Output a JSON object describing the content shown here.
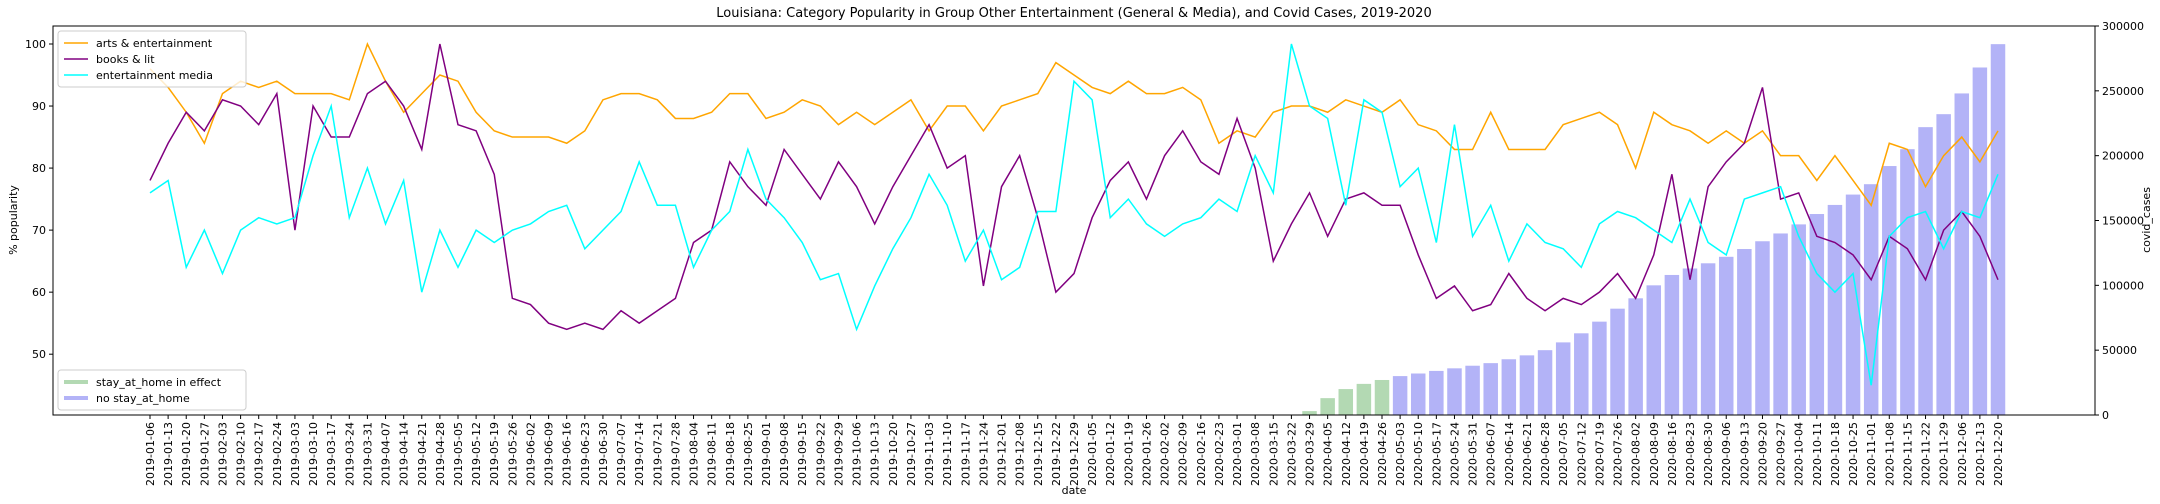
{
  "chart_data": {
    "type": "line",
    "title": "Louisiana: Category Popularity in Group Other Entertainment (General & Media), and Covid Cases, 2019-2020",
    "x_label": "date",
    "y_label": "% popularity",
    "y2_label": "covid_cases",
    "legend": "upper left",
    "bar_legend": "lower left",
    "categories": [
      "2019-01-06",
      "2019-01-13",
      "2019-01-20",
      "2019-01-27",
      "2019-02-03",
      "2019-02-10",
      "2019-02-17",
      "2019-02-24",
      "2019-03-03",
      "2019-03-10",
      "2019-03-17",
      "2019-03-24",
      "2019-03-31",
      "2019-04-07",
      "2019-04-14",
      "2019-04-21",
      "2019-04-28",
      "2019-05-05",
      "2019-05-12",
      "2019-05-19",
      "2019-05-26",
      "2019-06-02",
      "2019-06-09",
      "2019-06-16",
      "2019-06-23",
      "2019-06-30",
      "2019-07-07",
      "2019-07-14",
      "2019-07-21",
      "2019-07-28",
      "2019-08-04",
      "2019-08-11",
      "2019-08-18",
      "2019-08-25",
      "2019-09-01",
      "2019-09-08",
      "2019-09-15",
      "2019-09-22",
      "2019-09-29",
      "2019-10-06",
      "2019-10-13",
      "2019-10-20",
      "2019-10-27",
      "2019-11-03",
      "2019-11-10",
      "2019-11-17",
      "2019-11-24",
      "2019-12-01",
      "2019-12-08",
      "2019-12-15",
      "2019-12-22",
      "2019-12-29",
      "2020-01-05",
      "2020-01-12",
      "2020-01-19",
      "2020-01-26",
      "2020-02-02",
      "2020-02-09",
      "2020-02-16",
      "2020-02-23",
      "2020-03-01",
      "2020-03-08",
      "2020-03-15",
      "2020-03-22",
      "2020-03-29",
      "2020-04-05",
      "2020-04-12",
      "2020-04-19",
      "2020-04-26",
      "2020-05-03",
      "2020-05-10",
      "2020-05-17",
      "2020-05-24",
      "2020-05-31",
      "2020-06-07",
      "2020-06-14",
      "2020-06-21",
      "2020-06-28",
      "2020-07-05",
      "2020-07-12",
      "2020-07-19",
      "2020-07-26",
      "2020-08-02",
      "2020-08-09",
      "2020-08-16",
      "2020-08-23",
      "2020-08-30",
      "2020-09-06",
      "2020-09-13",
      "2020-09-20",
      "2020-09-27",
      "2020-10-04",
      "2020-10-11",
      "2020-10-18",
      "2020-10-25",
      "2020-11-01",
      "2020-11-08",
      "2020-11-15",
      "2020-11-22",
      "2020-11-29",
      "2020-12-06",
      "2020-12-13",
      "2020-12-20"
    ],
    "ylim": [
      40.2,
      102.9
    ],
    "yticks": [
      50,
      60,
      70,
      80,
      90,
      100
    ],
    "y2lim": [
      0,
      300000
    ],
    "y2ticks": [
      0,
      50000,
      100000,
      150000,
      200000,
      250000,
      300000
    ],
    "series": [
      {
        "name": "arts & entertainment",
        "color": "#ffa500",
        "values": [
          96,
          93,
          89,
          84,
          92,
          94,
          93,
          94,
          92,
          92,
          92,
          91,
          100,
          94,
          89,
          92,
          95,
          94,
          89,
          86,
          85,
          85,
          85,
          84,
          86,
          91,
          92,
          92,
          91,
          88,
          88,
          89,
          92,
          92,
          88,
          89,
          91,
          90,
          87,
          89,
          87,
          89,
          91,
          86,
          90,
          90,
          86,
          90,
          91,
          92,
          97,
          95,
          93,
          92,
          94,
          92,
          92,
          93,
          91,
          84,
          86,
          85,
          89,
          90,
          90,
          89,
          91,
          90,
          89,
          91,
          87,
          86,
          83,
          83,
          89,
          83,
          83,
          83,
          87,
          88,
          89,
          87,
          80,
          89,
          87,
          86,
          84,
          86,
          84,
          86,
          82,
          82,
          78,
          82,
          78,
          74,
          84,
          83,
          77,
          82,
          85,
          81,
          86
        ]
      },
      {
        "name": "books & lit",
        "color": "#800080",
        "values": [
          78,
          84,
          89,
          86,
          91,
          90,
          87,
          92,
          70,
          90,
          85,
          85,
          92,
          94,
          90,
          83,
          100,
          87,
          86,
          79,
          59,
          58,
          55,
          54,
          55,
          54,
          57,
          55,
          57,
          59,
          68,
          70,
          81,
          77,
          74,
          83,
          79,
          75,
          81,
          77,
          71,
          77,
          82,
          87,
          80,
          82,
          61,
          77,
          82,
          72,
          60,
          63,
          72,
          78,
          81,
          75,
          82,
          86,
          81,
          79,
          88,
          80,
          65,
          71,
          76,
          69,
          75,
          76,
          74,
          74,
          66,
          59,
          61,
          57,
          58,
          63,
          59,
          57,
          59,
          58,
          60,
          63,
          59,
          66,
          79,
          62,
          77,
          81,
          84,
          93,
          75,
          76,
          69,
          68,
          66,
          62,
          69,
          67,
          62,
          70,
          73,
          69,
          62
        ]
      },
      {
        "name": "entertainment media",
        "color": "#00ffff",
        "values": [
          76,
          78,
          64,
          70,
          63,
          70,
          72,
          71,
          72,
          82,
          90,
          72,
          80,
          71,
          78,
          60,
          70,
          64,
          70,
          68,
          70,
          71,
          73,
          74,
          67,
          70,
          73,
          81,
          74,
          74,
          64,
          70,
          73,
          83,
          75,
          72,
          68,
          62,
          63,
          54,
          61,
          67,
          72,
          79,
          74,
          65,
          70,
          62,
          64,
          73,
          73,
          94,
          91,
          72,
          75,
          71,
          69,
          71,
          72,
          75,
          73,
          82,
          76,
          100,
          90,
          88,
          74,
          91,
          89,
          77,
          80,
          68,
          87,
          69,
          74,
          65,
          71,
          68,
          67,
          64,
          71,
          73,
          72,
          70,
          68,
          75,
          68,
          66,
          75,
          76,
          77,
          69,
          63,
          60,
          63,
          45,
          69,
          72,
          73,
          67,
          73,
          72,
          79
        ]
      },
      {
        "name": "stay_at_home in effect",
        "color": "#b3d9b3",
        "type": "bar",
        "axis": "y2",
        "values": [
          null,
          null,
          null,
          null,
          null,
          null,
          null,
          null,
          null,
          null,
          null,
          null,
          null,
          null,
          null,
          null,
          null,
          null,
          null,
          null,
          null,
          null,
          null,
          null,
          null,
          null,
          null,
          null,
          null,
          null,
          null,
          null,
          null,
          null,
          null,
          null,
          null,
          null,
          null,
          null,
          null,
          null,
          null,
          null,
          null,
          null,
          null,
          null,
          null,
          null,
          null,
          null,
          null,
          null,
          null,
          null,
          null,
          null,
          null,
          null,
          null,
          null,
          null,
          null,
          3000,
          13000,
          20000,
          24000,
          27000,
          null,
          null,
          null,
          null,
          null,
          null,
          null,
          null,
          null,
          null,
          null,
          null,
          null,
          null,
          null,
          null,
          null,
          null,
          null,
          null,
          null,
          null,
          null,
          null,
          null,
          null,
          null,
          null,
          null,
          null,
          null,
          null,
          null,
          null
        ]
      },
      {
        "name": "no stay_at_home",
        "color": "#b3b3f7",
        "type": "bar",
        "axis": "y2",
        "values": [
          null,
          null,
          null,
          null,
          null,
          null,
          null,
          null,
          null,
          null,
          null,
          null,
          null,
          null,
          null,
          null,
          null,
          null,
          null,
          null,
          null,
          null,
          null,
          null,
          null,
          null,
          null,
          null,
          null,
          null,
          null,
          null,
          null,
          null,
          null,
          null,
          null,
          null,
          null,
          null,
          null,
          null,
          null,
          null,
          null,
          null,
          null,
          null,
          null,
          null,
          null,
          null,
          null,
          null,
          null,
          null,
          null,
          null,
          null,
          null,
          null,
          null,
          null,
          null,
          null,
          null,
          null,
          null,
          null,
          30000,
          32000,
          34000,
          36000,
          38000,
          40000,
          43000,
          46000,
          50000,
          56000,
          63000,
          72000,
          82000,
          90000,
          100000,
          108000,
          113000,
          117000,
          122000,
          128000,
          134000,
          140000,
          147000,
          155000,
          162000,
          170000,
          178000,
          192000,
          205000,
          222000,
          232000,
          248000,
          268000,
          286000
        ]
      }
    ]
  }
}
